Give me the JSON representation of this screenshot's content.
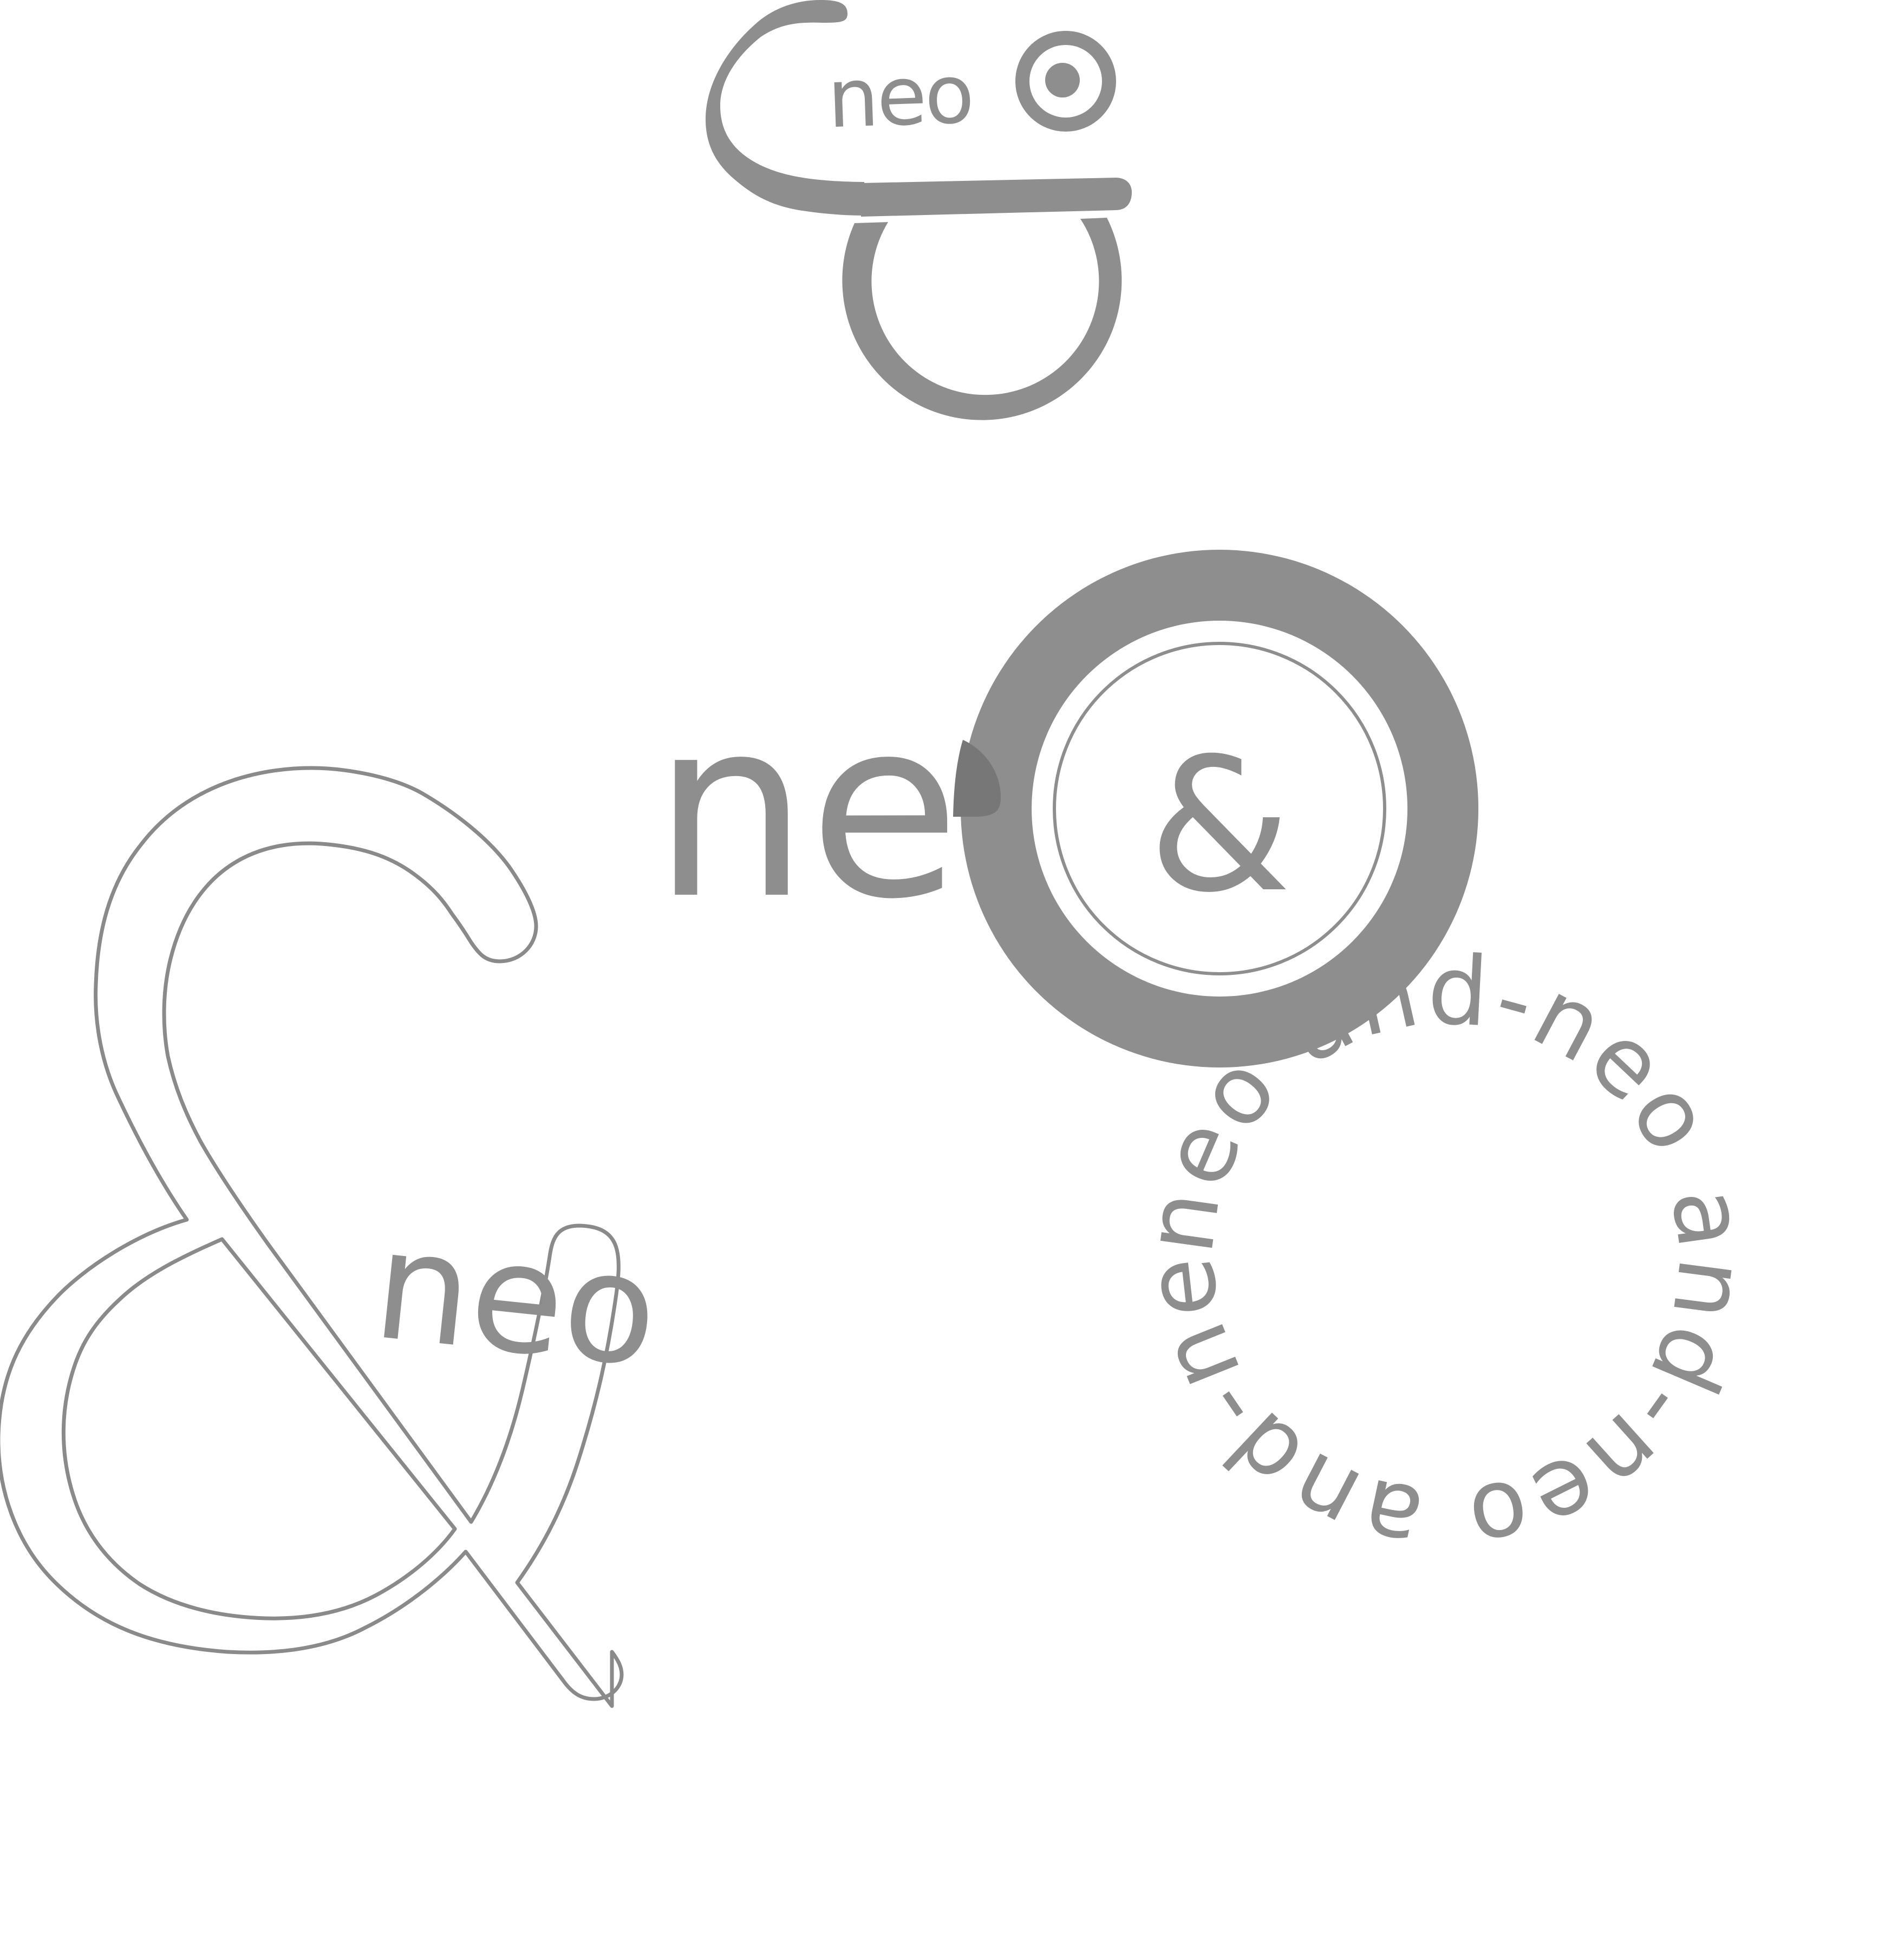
{
  "colors": {
    "background": "#ffffff",
    "primary_gray": "#8e8e8e",
    "dark_accent_gray": "#777777",
    "outline_gray": "#8a8a8a"
  },
  "logos": {
    "top_logo": {
      "text": "neo"
    },
    "middle_logo": {
      "text": "ne",
      "ampersand": "&"
    },
    "bottom_left_logo": {
      "text": "neo",
      "ampersand": "&"
    },
    "circular_text_logo": {
      "text": "neo and-neo and-neo and-neo and-"
    }
  }
}
